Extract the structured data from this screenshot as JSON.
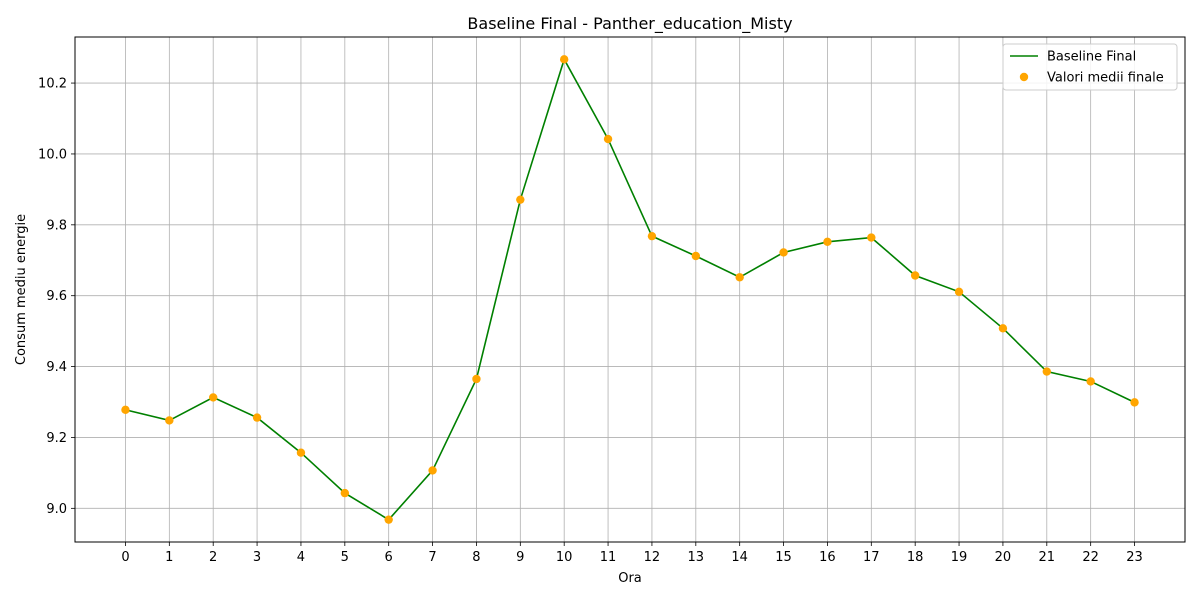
{
  "chart_data": {
    "type": "line",
    "title": "Baseline Final - Panther_education_Misty",
    "xlabel": "Ora",
    "ylabel": "Consum mediu energie",
    "x": [
      0,
      1,
      2,
      3,
      4,
      5,
      6,
      7,
      8,
      9,
      10,
      11,
      12,
      13,
      14,
      15,
      16,
      17,
      18,
      19,
      20,
      21,
      22,
      23
    ],
    "y_ticks": [
      "9.0",
      "9.2",
      "9.4",
      "9.6",
      "9.8",
      "10.0",
      "10.2"
    ],
    "xlim": [
      -1.15,
      24.15
    ],
    "ylim": [
      8.905,
      10.33
    ],
    "grid": true,
    "legend_position": "top-right",
    "series": [
      {
        "name": "Baseline Final",
        "kind": "line",
        "color": "#008000",
        "values": [
          9.278,
          9.248,
          9.313,
          9.256,
          9.157,
          9.043,
          8.968,
          9.107,
          9.365,
          9.871,
          10.267,
          10.042,
          9.768,
          9.712,
          9.652,
          9.722,
          9.752,
          9.764,
          9.657,
          9.611,
          9.508,
          9.386,
          9.358,
          9.299
        ]
      },
      {
        "name": "Valori medii finale",
        "kind": "scatter",
        "color": "#FFA500",
        "values": [
          9.278,
          9.248,
          9.313,
          9.256,
          9.157,
          9.043,
          8.968,
          9.107,
          9.365,
          9.871,
          10.267,
          10.042,
          9.768,
          9.712,
          9.652,
          9.722,
          9.752,
          9.764,
          9.657,
          9.611,
          9.508,
          9.386,
          9.358,
          9.299
        ]
      }
    ]
  }
}
